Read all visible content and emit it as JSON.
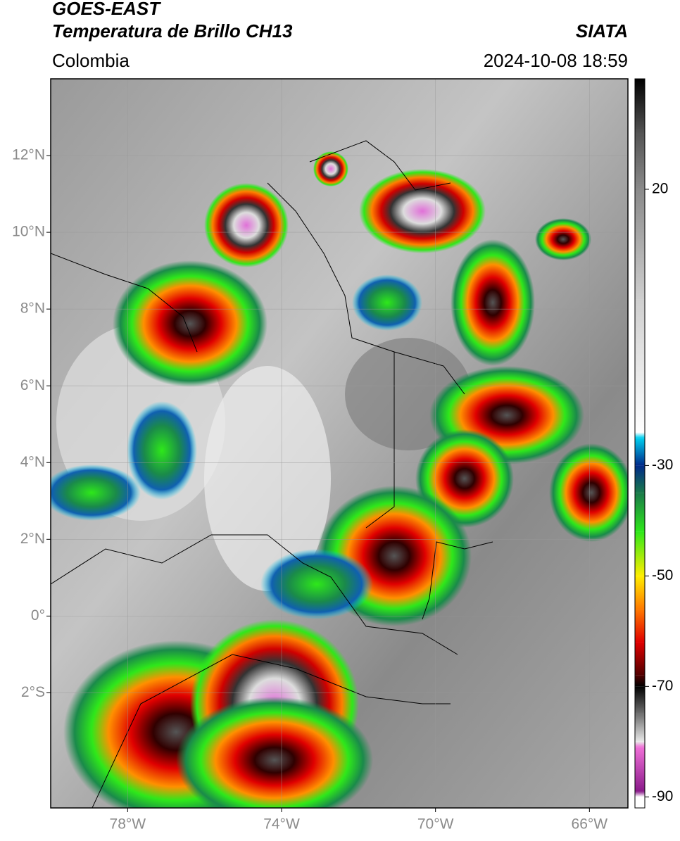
{
  "chart_data": {
    "type": "map",
    "title": "GOES-EAST",
    "subtitle": "Temperatura de Brillo CH13",
    "source": "SIATA",
    "region": "Colombia",
    "datetime": "2024-10-08 18:59",
    "xlim": [
      -80,
      -65
    ],
    "ylim": [
      -5,
      14
    ],
    "xticks": [
      {
        "value": -78,
        "label": "78°W"
      },
      {
        "value": -74,
        "label": "74°W"
      },
      {
        "value": -70,
        "label": "70°W"
      },
      {
        "value": -66,
        "label": "66°W"
      }
    ],
    "yticks": [
      {
        "value": 12,
        "label": "12°N"
      },
      {
        "value": 10,
        "label": "10°N"
      },
      {
        "value": 8,
        "label": "8°N"
      },
      {
        "value": 6,
        "label": "6°N"
      },
      {
        "value": 4,
        "label": "4°N"
      },
      {
        "value": 2,
        "label": "2°N"
      },
      {
        "value": 0,
        "label": "0°"
      },
      {
        "value": -2,
        "label": "2°S"
      }
    ],
    "grid": true,
    "colorbar": {
      "clim": [
        -92,
        40
      ],
      "ticks": [
        20,
        -30,
        -50,
        -70,
        -90
      ],
      "colormap": [
        {
          "value": 40,
          "color": "#000000"
        },
        {
          "value": 30,
          "color": "#555555"
        },
        {
          "value": 20,
          "color": "#8a8a8a"
        },
        {
          "value": 0,
          "color": "#cfcfcf"
        },
        {
          "value": -24,
          "color": "#ffffff"
        },
        {
          "value": -25,
          "color": "#00d0f0"
        },
        {
          "value": -30,
          "color": "#002a8a"
        },
        {
          "value": -35,
          "color": "#1a7a4a"
        },
        {
          "value": -42,
          "color": "#2ee81a"
        },
        {
          "value": -50,
          "color": "#ffee00"
        },
        {
          "value": -56,
          "color": "#ff7a00"
        },
        {
          "value": -62,
          "color": "#e00000"
        },
        {
          "value": -68,
          "color": "#500000"
        },
        {
          "value": -70,
          "color": "#000000"
        },
        {
          "value": -75,
          "color": "#707070"
        },
        {
          "value": -80,
          "color": "#e8e8e8"
        },
        {
          "value": -81,
          "color": "#f070d8"
        },
        {
          "value": -89,
          "color": "#8a1a8a"
        },
        {
          "value": -90,
          "color": "#ffffff"
        }
      ]
    }
  }
}
